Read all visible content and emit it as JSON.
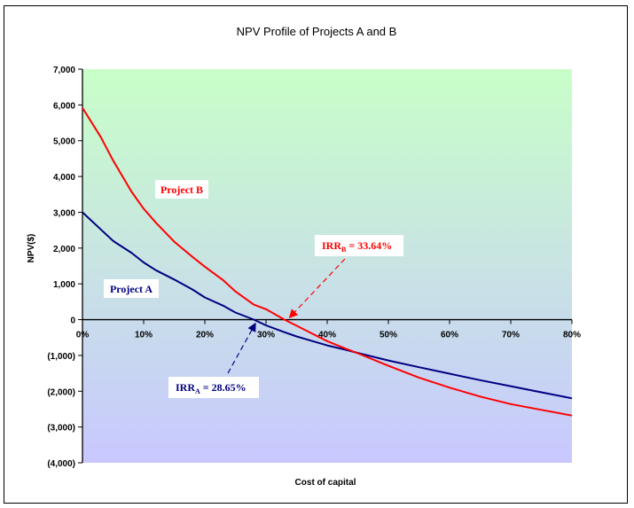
{
  "chart_data": {
    "type": "line",
    "title": "NPV Profile of Projects A and B",
    "xlabel": "Cost of capital",
    "ylabel": "NPV($)",
    "xlim": [
      0,
      80
    ],
    "ylim": [
      -4000,
      7000
    ],
    "x_ticks": [
      "0%",
      "10%",
      "20%",
      "30%",
      "40%",
      "50%",
      "60%",
      "70%",
      "80%"
    ],
    "y_ticks": [
      "7,000",
      "6,000",
      "5,000",
      "4,000",
      "3,000",
      "2,000",
      "1,000",
      "0",
      "(1,000)",
      "(2,000)",
      "(3,000)",
      "(4,000)"
    ],
    "y_tick_values": [
      7000,
      6000,
      5000,
      4000,
      3000,
      2000,
      1000,
      0,
      -1000,
      -2000,
      -3000,
      -4000
    ],
    "x_tick_values": [
      0,
      10,
      20,
      30,
      40,
      50,
      60,
      70,
      80
    ],
    "series": [
      {
        "name": "Project A",
        "color": "#000080",
        "x": [
          0,
          3,
          5,
          8,
          10,
          12,
          15,
          18,
          20,
          23,
          25,
          28,
          30,
          33,
          35,
          38,
          40,
          43,
          45,
          50,
          55,
          60,
          65,
          70,
          75,
          80
        ],
        "y": [
          3000,
          2520,
          2200,
          1870,
          1600,
          1380,
          1120,
          840,
          620,
          390,
          200,
          0,
          -160,
          -350,
          -470,
          -620,
          -720,
          -840,
          -930,
          -1140,
          -1330,
          -1510,
          -1690,
          -1860,
          -2030,
          -2200
        ]
      },
      {
        "name": "Project B",
        "color": "#ff0000",
        "x": [
          0,
          3,
          5,
          8,
          10,
          12,
          15,
          18,
          20,
          23,
          25,
          28,
          30,
          33,
          35,
          38,
          40,
          43,
          45,
          50,
          55,
          60,
          65,
          70,
          75,
          80
        ],
        "y": [
          5920,
          5100,
          4450,
          3580,
          3100,
          2710,
          2180,
          1750,
          1480,
          1100,
          790,
          420,
          290,
          0,
          -170,
          -430,
          -600,
          -810,
          -940,
          -1290,
          -1620,
          -1900,
          -2150,
          -2360,
          -2520,
          -2680
        ]
      }
    ],
    "annotations": {
      "project_a": "Project A",
      "project_b": "Project B",
      "irr_a_text": "IRR",
      "irr_a_sub": "A",
      "irr_a_value": " = 28.65%",
      "irr_b_text": "IRR",
      "irr_b_sub": "B",
      "irr_b_value": " = 33.64%",
      "irr_a_target": [
        28.65,
        0
      ],
      "irr_b_target": [
        33.64,
        0
      ]
    },
    "grid": false,
    "background_gradient": [
      "#c8ffc8",
      "#c8c8ff"
    ]
  }
}
